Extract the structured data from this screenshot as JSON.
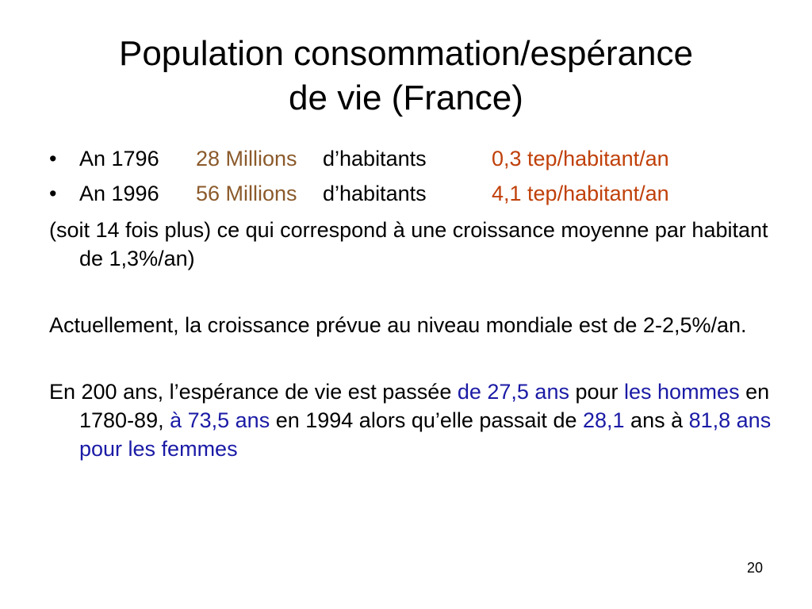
{
  "title": {
    "line1": "Population consommation/espérance",
    "line2": "de vie (France)"
  },
  "bullets": [
    {
      "marker": "•",
      "year": "An 1796",
      "population": "28 Millions",
      "habitants": "d’habitants",
      "tep": "0,3 tep/habitant/an"
    },
    {
      "marker": "•",
      "year": "An 1996",
      "population": "56 Millions",
      "habitants": "d’habitants",
      "tep": "4,1 tep/habitant/an"
    }
  ],
  "paragraph1": "(soit 14 fois plus) ce qui correspond à une croissance moyenne par habitant de 1,3%/an)",
  "paragraph2": "Actuellement, la croissance prévue au niveau mondiale est de 2-2,5%/an.",
  "paragraph3": {
    "p1": "En 200 ans, l’espérance de vie est passée ",
    "h1": "de 27,5 ans",
    "p2": " pour ",
    "h2": "les hommes",
    "p3": " en 1780-89, ",
    "h3": "à 73,5 ans",
    "p4": " en 1994 alors qu’elle passait de ",
    "h4": "28,1",
    "p5": " ans à ",
    "h5": "81,8 ans pour les femmes"
  },
  "page_number": "20",
  "colors": {
    "population": "#8b5a2b",
    "tep": "#c0400a",
    "highlight": "#1a1aa6"
  }
}
